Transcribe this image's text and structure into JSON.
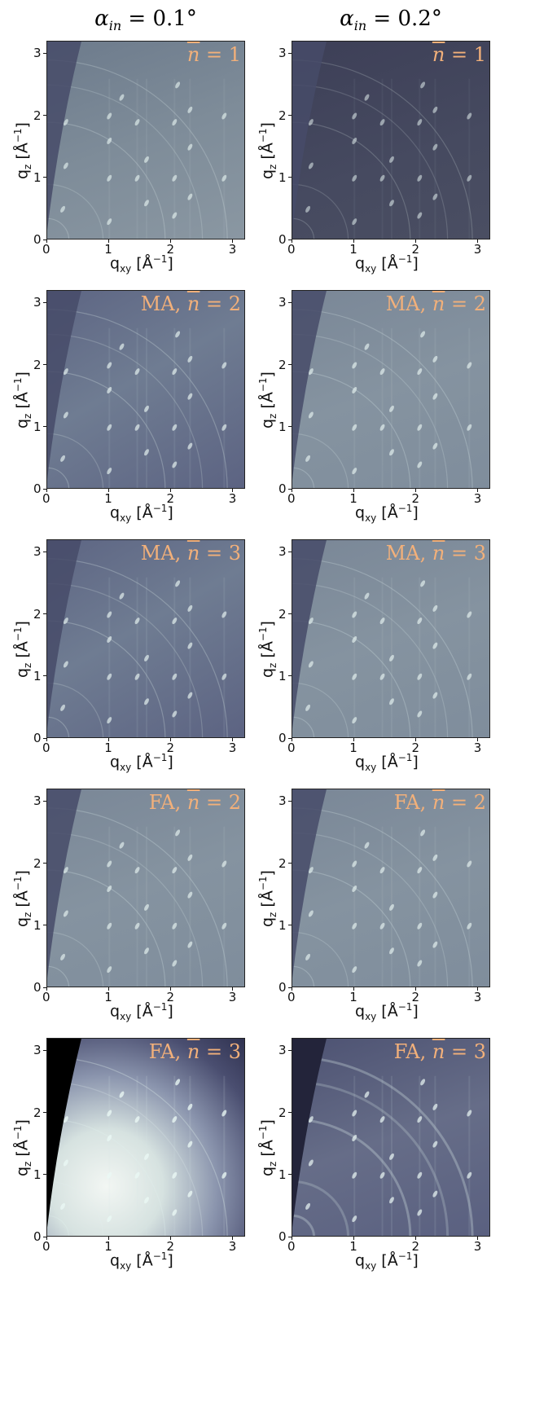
{
  "figure": {
    "col_titles": [
      {
        "alpha": "α",
        "sub": "in",
        "rest": " = 0.1°"
      },
      {
        "alpha": "α",
        "sub": "in",
        "rest": " = 0.2°"
      }
    ],
    "xlabel": {
      "base": "q",
      "sub": "xy",
      "unit": " [Å",
      "exp": "−1",
      "close": "]"
    },
    "ylabel": {
      "base": "q",
      "sub": "z",
      "unit": " [Å",
      "exp": "−1",
      "close": "]"
    }
  },
  "chart_data": [
    {
      "type": "heatmap",
      "row": 1,
      "col": 1,
      "label_prefix": "",
      "label_n": "n",
      "label_val": " = 1",
      "tone": "mid",
      "xlim": [
        0,
        3.2
      ],
      "ylim": [
        0,
        3.2
      ],
      "xticks": [
        "0",
        "1",
        "2",
        "3"
      ],
      "yticks": [
        "0",
        "1",
        "2",
        "3"
      ]
    },
    {
      "type": "heatmap",
      "row": 1,
      "col": 2,
      "label_prefix": "",
      "label_n": "n",
      "label_val": " = 1",
      "tone": "dark",
      "xlim": [
        0,
        3.2
      ],
      "ylim": [
        0,
        3.2
      ],
      "xticks": [
        "0",
        "1",
        "2",
        "3"
      ],
      "yticks": [
        "0",
        "1",
        "2",
        "3"
      ]
    },
    {
      "type": "heatmap",
      "row": 2,
      "col": 1,
      "label_prefix": "MA, ",
      "label_n": "n",
      "label_val": " = 2",
      "tone": "mid2",
      "xlim": [
        0,
        3.2
      ],
      "ylim": [
        0,
        3.2
      ],
      "xticks": [
        "0",
        "1",
        "2",
        "3"
      ],
      "yticks": [
        "0",
        "1",
        "2",
        "3"
      ]
    },
    {
      "type": "heatmap",
      "row": 2,
      "col": 2,
      "label_prefix": "MA, ",
      "label_n": "n",
      "label_val": " = 2",
      "tone": "light",
      "xlim": [
        0,
        3.2
      ],
      "ylim": [
        0,
        3.2
      ],
      "xticks": [
        "0",
        "1",
        "2",
        "3"
      ],
      "yticks": [
        "0",
        "1",
        "2",
        "3"
      ]
    },
    {
      "type": "heatmap",
      "row": 3,
      "col": 1,
      "label_prefix": "MA, ",
      "label_n": "n",
      "label_val": " = 3",
      "tone": "mid2",
      "xlim": [
        0,
        3.2
      ],
      "ylim": [
        0,
        3.2
      ],
      "xticks": [
        "0",
        "1",
        "2",
        "3"
      ],
      "yticks": [
        "0",
        "1",
        "2",
        "3"
      ]
    },
    {
      "type": "heatmap",
      "row": 3,
      "col": 2,
      "label_prefix": "MA, ",
      "label_n": "n",
      "label_val": " = 3",
      "tone": "light",
      "xlim": [
        0,
        3.2
      ],
      "ylim": [
        0,
        3.2
      ],
      "xticks": [
        "0",
        "1",
        "2",
        "3"
      ],
      "yticks": [
        "0",
        "1",
        "2",
        "3"
      ]
    },
    {
      "type": "heatmap",
      "row": 4,
      "col": 1,
      "label_prefix": "FA, ",
      "label_n": "n",
      "label_val": " = 2",
      "tone": "light",
      "xlim": [
        0,
        3.2
      ],
      "ylim": [
        0,
        3.2
      ],
      "xticks": [
        "0",
        "1",
        "2",
        "3"
      ],
      "yticks": [
        "0",
        "1",
        "2",
        "3"
      ]
    },
    {
      "type": "heatmap",
      "row": 4,
      "col": 2,
      "label_prefix": "FA, ",
      "label_n": "n",
      "label_val": " = 2",
      "tone": "light",
      "xlim": [
        0,
        3.2
      ],
      "ylim": [
        0,
        3.2
      ],
      "xticks": [
        "0",
        "1",
        "2",
        "3"
      ],
      "yticks": [
        "0",
        "1",
        "2",
        "3"
      ]
    },
    {
      "type": "heatmap",
      "row": 5,
      "col": 1,
      "label_prefix": "FA, ",
      "label_n": "n",
      "label_val": " = 3",
      "tone": "bright",
      "xlim": [
        0,
        3.2
      ],
      "ylim": [
        0,
        3.2
      ],
      "xticks": [
        "0",
        "1",
        "2",
        "3"
      ],
      "yticks": [
        "0",
        "1",
        "2",
        "3"
      ]
    },
    {
      "type": "heatmap",
      "row": 5,
      "col": 2,
      "label_prefix": "FA, ",
      "label_n": "n",
      "label_val": " = 3",
      "tone": "rings",
      "xlim": [
        0,
        3.2
      ],
      "ylim": [
        0,
        3.2
      ],
      "xticks": [
        "0",
        "1",
        "2",
        "3"
      ],
      "yticks": [
        "0",
        "1",
        "2",
        "3"
      ]
    }
  ]
}
